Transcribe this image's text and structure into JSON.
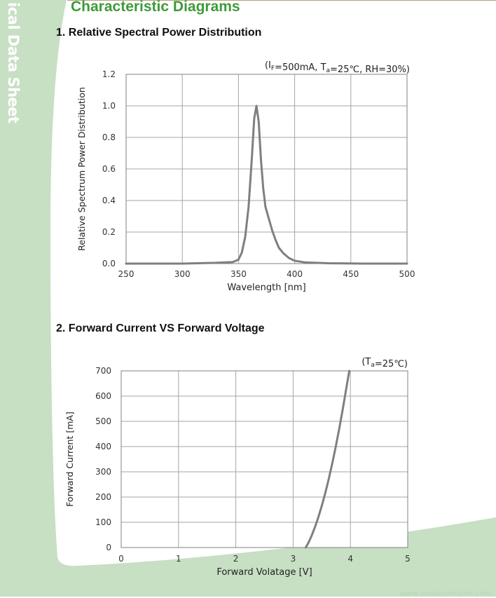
{
  "page": {
    "side_text": "ical Data Sheet",
    "title": "Characteristic Diagrams",
    "footer_text": "www.seoulsemicon.com",
    "accent_color": "#3f9a3a",
    "band_color": "#c7dfc3"
  },
  "sections": [
    {
      "title": "1. Relative Spectral Power Distribution"
    },
    {
      "title": "2. Forward Current VS Forward Voltage"
    }
  ],
  "chart_data": [
    {
      "type": "line",
      "title": "",
      "condition": {
        "prefix": "(I",
        "sub1": "F",
        "mid": "=500mA, T",
        "sub2": "a",
        "suffix": "=25℃, RH=30%)"
      },
      "xlabel": "Wavelength [nm]",
      "ylabel": "Relative Spectrum Power Distribution",
      "xlim": [
        250,
        500
      ],
      "ylim": [
        0,
        1.2
      ],
      "xticks": [
        "250",
        "300",
        "350",
        "400",
        "450",
        "500"
      ],
      "yticks": [
        "0.0",
        "0.2",
        "0.4",
        "0.6",
        "0.8",
        "1.0",
        "1.2"
      ],
      "grid": true,
      "line_color": "#7f7f7f",
      "series": [
        {
          "x": [
            250,
            300,
            330,
            345,
            350,
            353,
            356,
            359,
            362,
            364,
            366,
            368,
            370,
            372,
            374,
            376,
            378,
            380,
            383,
            386,
            390,
            395,
            400,
            410,
            430,
            460,
            500
          ],
          "y": [
            0.0,
            0.0,
            0.005,
            0.01,
            0.025,
            0.07,
            0.17,
            0.36,
            0.68,
            0.92,
            1.0,
            0.9,
            0.66,
            0.48,
            0.36,
            0.31,
            0.26,
            0.21,
            0.15,
            0.1,
            0.065,
            0.035,
            0.018,
            0.007,
            0.002,
            0.0,
            0.0
          ]
        }
      ]
    },
    {
      "type": "line",
      "title": "",
      "condition": {
        "prefix": "(T",
        "sub1": "a",
        "mid": "",
        "sub2": "",
        "suffix": "=25℃)"
      },
      "xlabel": "Forward  Volatage [V]",
      "ylabel": "Forward Current [mA]",
      "xlim": [
        0,
        5
      ],
      "ylim": [
        0,
        700
      ],
      "xticks": [
        "0",
        "1",
        "2",
        "3",
        "4",
        "5"
      ],
      "yticks": [
        "0",
        "100",
        "200",
        "300",
        "400",
        "500",
        "600",
        "700"
      ],
      "grid": true,
      "line_color": "#7f7f7f",
      "series": [
        {
          "x": [
            3.22,
            3.27,
            3.32,
            3.38,
            3.44,
            3.5,
            3.56,
            3.62,
            3.68,
            3.74,
            3.8,
            3.86,
            3.92,
            3.98
          ],
          "y": [
            0,
            20,
            45,
            80,
            120,
            165,
            215,
            270,
            330,
            395,
            465,
            540,
            620,
            700
          ]
        }
      ]
    }
  ]
}
